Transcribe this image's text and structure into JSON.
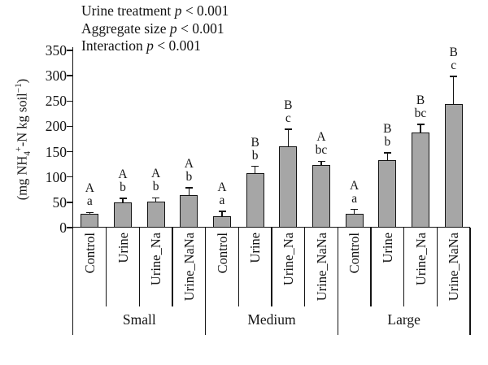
{
  "figure": {
    "background": "#ffffff",
    "bar_fill": "#a6a6a6",
    "line_color": "#141414"
  },
  "annotations": {
    "lines": [
      {
        "label": "Urine treatment ",
        "p": "p",
        "value": " < 0.001"
      },
      {
        "label": "Aggregate size ",
        "p": "p",
        "value": " < 0.001"
      },
      {
        "label": "Interaction ",
        "p": "p",
        "value": " < 0.001"
      }
    ]
  },
  "y_axis": {
    "label_parts": {
      "open": "(mg NH",
      "sub4": "4",
      "sup_plus": "+",
      "mid": "-N kg soil",
      "sup_exp": "−1",
      "close": ")"
    }
  },
  "chart_data": {
    "type": "bar",
    "title": "",
    "xlabel": "",
    "ylabel": "(mg NH4+-N kg soil−1)",
    "ylim": [
      0,
      350
    ],
    "y_ticks": [
      0,
      50,
      100,
      150,
      200,
      250,
      300,
      350
    ],
    "grid": false,
    "legend": null,
    "annotations": [
      "Urine treatment p < 0.001",
      "Aggregate size p < 0.001",
      "Interaction p < 0.001"
    ],
    "treatments": [
      "Control",
      "Urine",
      "Urine_Na",
      "Urine_NaNa"
    ],
    "groups": [
      {
        "label": "Small",
        "bars": [
          {
            "treatment": "Control",
            "value": 27,
            "error": 3,
            "letters": [
              "A",
              "a"
            ]
          },
          {
            "treatment": "Urine",
            "value": 50,
            "error": 8,
            "letters": [
              "A",
              "b"
            ]
          },
          {
            "treatment": "Urine_Na",
            "value": 51,
            "error": 8,
            "letters": [
              "A",
              "b"
            ]
          },
          {
            "treatment": "Urine_NaNa",
            "value": 64,
            "error": 15,
            "letters": [
              "A",
              "b"
            ]
          }
        ]
      },
      {
        "label": "Medium",
        "bars": [
          {
            "treatment": "Control",
            "value": 23,
            "error": 9,
            "letters": [
              "A",
              "a"
            ]
          },
          {
            "treatment": "Urine",
            "value": 108,
            "error": 13,
            "letters": [
              "B",
              "b"
            ]
          },
          {
            "treatment": "Urine_Na",
            "value": 160,
            "error": 34,
            "letters": [
              "B",
              "c"
            ]
          },
          {
            "treatment": "Urine_NaNa",
            "value": 123,
            "error": 8,
            "letters": [
              "A",
              "bc"
            ]
          }
        ]
      },
      {
        "label": "Large",
        "bars": [
          {
            "treatment": "Control",
            "value": 27,
            "error": 9,
            "letters": [
              "A",
              "a"
            ]
          },
          {
            "treatment": "Urine",
            "value": 133,
            "error": 15,
            "letters": [
              "B",
              "b"
            ]
          },
          {
            "treatment": "Urine_Na",
            "value": 188,
            "error": 16,
            "letters": [
              "B",
              "bc"
            ]
          },
          {
            "treatment": "Urine_NaNa",
            "value": 244,
            "error": 55,
            "letters": [
              "B",
              "c"
            ]
          }
        ]
      }
    ]
  }
}
